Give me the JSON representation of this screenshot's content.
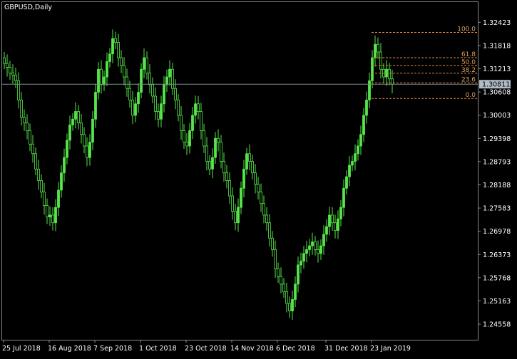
{
  "chart_data": {
    "type": "candlestick",
    "title": "GBPUSD,Daily",
    "ylim": [
      1.2415,
      1.3295
    ],
    "y_ticks": [
      "1.32423",
      "1.31818",
      "1.31213",
      "1.30608",
      "1.30003",
      "1.29398",
      "1.28793",
      "1.28188",
      "1.27583",
      "1.26978",
      "1.26373",
      "1.25768",
      "1.25163",
      "1.24558"
    ],
    "x_ticks": [
      {
        "label": "25 Jul 2018",
        "bar": 0
      },
      {
        "label": "16 Aug 2018",
        "bar": 16
      },
      {
        "label": "7 Sep 2018",
        "bar": 32
      },
      {
        "label": "1 Oct 2018",
        "bar": 48
      },
      {
        "label": "23 Oct 2018",
        "bar": 64
      },
      {
        "label": "14 Nov 2018",
        "bar": 80
      },
      {
        "label": "6 Dec 2018",
        "bar": 96
      },
      {
        "label": "31 Dec 2018",
        "bar": 113
      },
      {
        "label": "23 Jan 2019",
        "bar": 129
      }
    ],
    "current_price": "1.30811",
    "price_line": 1.30811,
    "fibonacci": {
      "high": 1.3216,
      "low": 1.3044,
      "start_bar": 129,
      "levels": [
        {
          "label": "100.0",
          "pct": 100
        },
        {
          "label": "61.8",
          "pct": 61.8
        },
        {
          "label": "50.0",
          "pct": 50
        },
        {
          "label": "38.2",
          "pct": 38.2
        },
        {
          "label": "23.6",
          "pct": 23.6
        },
        {
          "label": "0.0",
          "pct": 0
        }
      ]
    },
    "bar_spacing_days": 1,
    "close": [
      1.3135,
      1.3125,
      1.311,
      1.3105,
      1.309,
      1.304,
      1.2995,
      1.298,
      1.296,
      1.2925,
      1.29,
      1.286,
      1.283,
      1.28,
      1.2765,
      1.2735,
      1.274,
      1.272,
      1.276,
      1.2805,
      1.285,
      1.289,
      1.2935,
      1.2975,
      1.299,
      1.301,
      1.298,
      1.295,
      1.292,
      1.289,
      1.293,
      1.299,
      1.306,
      1.312,
      1.308,
      1.31,
      1.314,
      1.316,
      1.32,
      1.319,
      1.315,
      1.313,
      1.31,
      1.307,
      1.304,
      1.3,
      1.303,
      1.306,
      1.312,
      1.315,
      1.311,
      1.308,
      1.305,
      1.301,
      1.299,
      1.303,
      1.308,
      1.31,
      1.312,
      1.307,
      1.304,
      1.3,
      1.296,
      1.293,
      1.292,
      1.296,
      1.3,
      1.303,
      1.301,
      1.296,
      1.292,
      1.288,
      1.286,
      1.289,
      1.294,
      1.293,
      1.288,
      1.285,
      1.283,
      1.279,
      1.275,
      1.272,
      1.276,
      1.281,
      1.286,
      1.29,
      1.288,
      1.285,
      1.282,
      1.28,
      1.277,
      1.274,
      1.272,
      1.268,
      1.265,
      1.26,
      1.258,
      1.256,
      1.254,
      1.251,
      1.249,
      1.252,
      1.256,
      1.261,
      1.262,
      1.264,
      1.265,
      1.266,
      1.267,
      1.265,
      1.264,
      1.266,
      1.269,
      1.271,
      1.274,
      1.272,
      1.27,
      1.273,
      1.276,
      1.281,
      1.284,
      1.287,
      1.288,
      1.29,
      1.292,
      1.295,
      1.3,
      1.304,
      1.309,
      1.315,
      1.3185,
      1.3165,
      1.312,
      1.31,
      1.312,
      1.3095,
      1.3081
    ]
  }
}
